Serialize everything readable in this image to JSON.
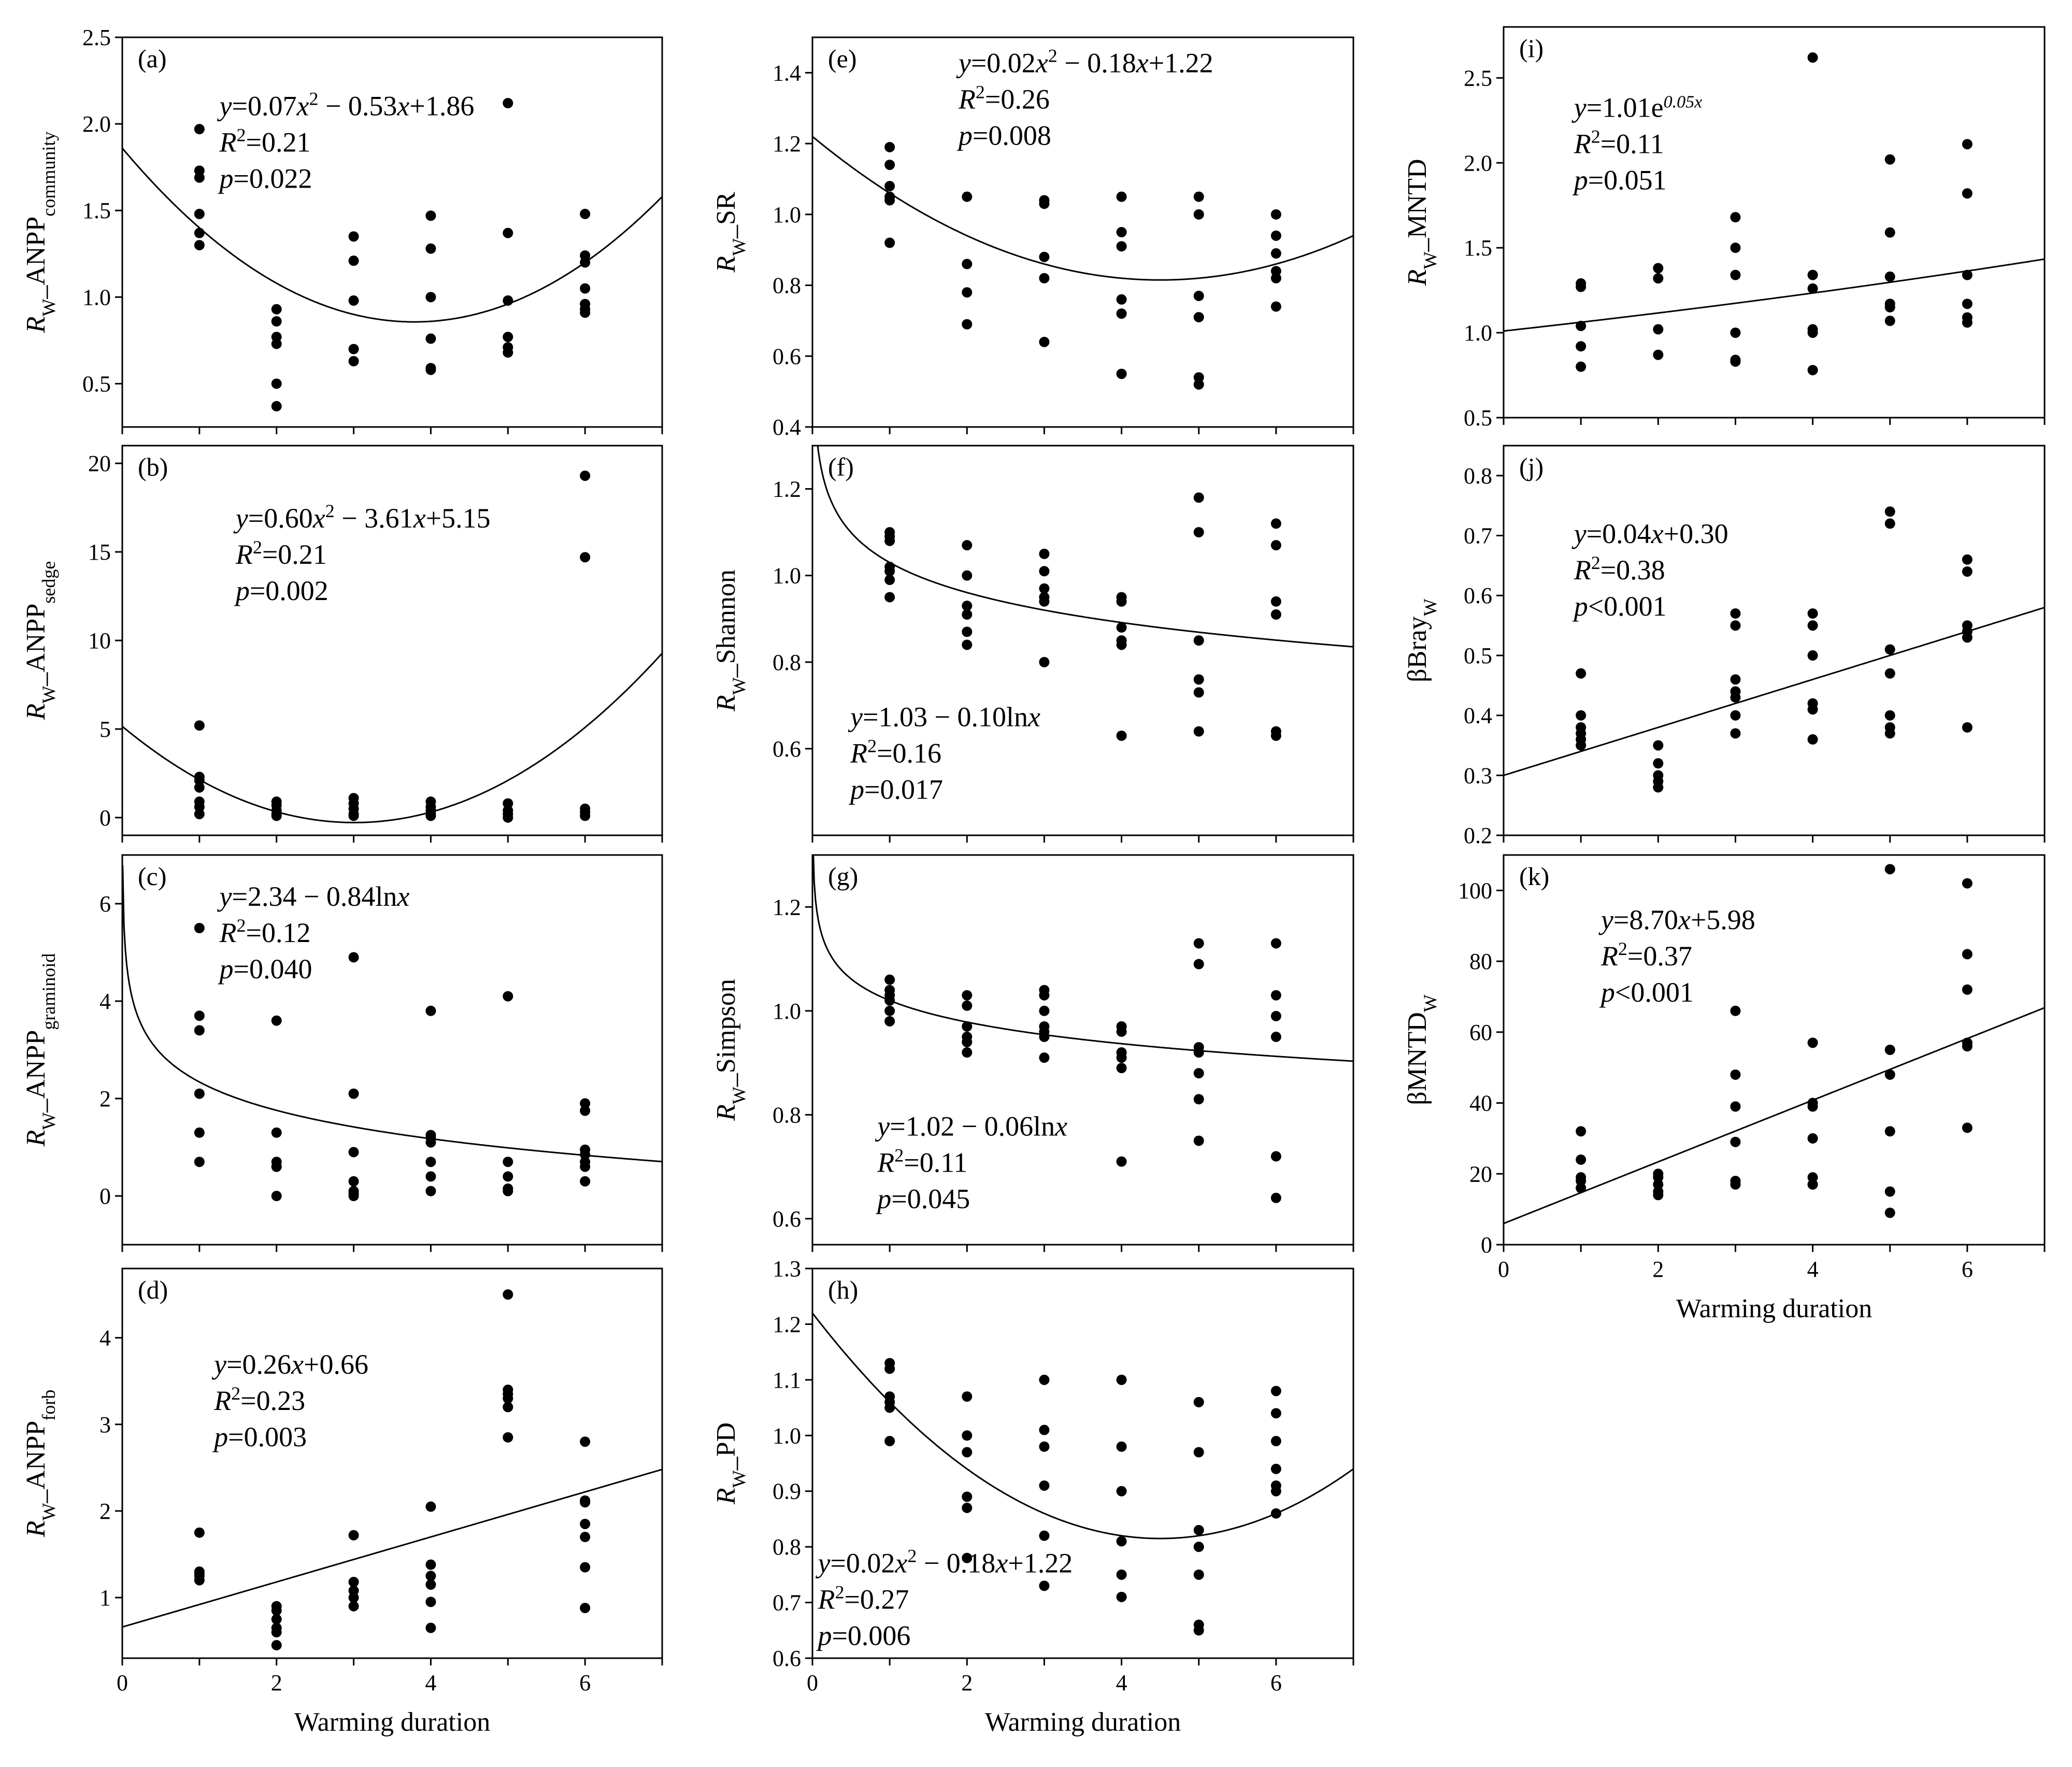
{
  "chart_data": [
    {
      "id": "a",
      "type": "scatter",
      "panel_label": "(a)",
      "ylabel": {
        "main": "R",
        "sub": "W",
        "rest": "_ANPP",
        "sub2": "community"
      },
      "xlabel": "",
      "xlim": [
        0,
        7
      ],
      "ylim": [
        0.25,
        2.5
      ],
      "yticks": [
        "0.5",
        "1.0",
        "1.5",
        "2.0",
        "2.5"
      ],
      "xticks": [],
      "x": [
        1,
        1,
        1,
        1,
        1,
        1,
        2,
        2,
        2,
        2,
        2,
        2,
        3,
        3,
        3,
        3,
        3,
        4,
        4,
        4,
        4,
        4,
        4,
        5,
        5,
        5,
        5,
        5,
        5,
        6,
        6,
        6,
        6,
        6,
        6,
        6
      ],
      "y": [
        1.97,
        1.73,
        1.69,
        1.48,
        1.37,
        1.3,
        0.93,
        0.86,
        0.77,
        0.73,
        0.5,
        0.37,
        1.35,
        1.21,
        0.98,
        0.7,
        0.63,
        1.47,
        1.28,
        1.0,
        0.76,
        0.59,
        0.58,
        2.12,
        1.37,
        0.98,
        0.77,
        0.71,
        0.68,
        1.48,
        1.24,
        1.2,
        1.05,
        0.96,
        0.93,
        0.91
      ],
      "fit": {
        "model": "quadratic",
        "coef": [
          0.07,
          -0.53,
          1.86
        ]
      },
      "annotation": [
        "y=0.07x² − 0.53x+1.86",
        "R²=0.21",
        "p=0.022"
      ]
    },
    {
      "id": "b",
      "type": "scatter",
      "panel_label": "(b)",
      "ylabel": {
        "main": "R",
        "sub": "W",
        "rest": "_ANPP",
        "sub2": "sedge"
      },
      "xlabel": "",
      "xlim": [
        0,
        7
      ],
      "ylim": [
        -1,
        21
      ],
      "yticks": [
        "0",
        "5",
        "10",
        "15",
        "20"
      ],
      "xticks": [],
      "x": [
        1,
        1,
        1,
        1,
        1,
        1,
        1,
        2,
        2,
        2,
        2,
        2,
        3,
        3,
        3,
        3,
        3,
        4,
        4,
        4,
        4,
        4,
        5,
        5,
        5,
        5,
        6,
        6,
        6,
        6,
        6
      ],
      "y": [
        5.2,
        2.3,
        2.1,
        1.7,
        0.9,
        0.6,
        0.2,
        0.9,
        0.7,
        0.4,
        0.2,
        0.1,
        1.1,
        0.8,
        0.5,
        0.2,
        0.1,
        0.9,
        0.6,
        0.4,
        0.2,
        0.1,
        0.8,
        0.4,
        0.2,
        0.0,
        19.3,
        14.7,
        0.5,
        0.3,
        0.1
      ],
      "fit": {
        "model": "quadratic",
        "coef": [
          0.6,
          -3.61,
          5.15
        ]
      },
      "annotation": [
        "y=0.60x² − 3.61x+5.15",
        "R²=0.21",
        "p=0.002"
      ]
    },
    {
      "id": "c",
      "type": "scatter",
      "panel_label": "(c)",
      "ylabel": {
        "main": "R",
        "sub": "W",
        "rest": "_ANPP",
        "sub2": "graminoid"
      },
      "xlabel": "",
      "xlim": [
        0,
        7
      ],
      "ylim": [
        -1,
        7
      ],
      "yticks": [
        "0",
        "2",
        "4",
        "6"
      ],
      "xticks": [],
      "x": [
        1,
        1,
        1,
        1,
        1,
        1,
        2,
        2,
        2,
        2,
        2,
        2,
        3,
        3,
        3,
        3,
        3,
        3,
        3,
        4,
        4,
        4,
        4,
        4,
        4,
        4,
        5,
        5,
        5,
        5,
        5,
        6,
        6,
        6,
        6,
        6,
        6,
        6
      ],
      "y": [
        5.5,
        3.7,
        3.4,
        2.1,
        1.3,
        0.7,
        3.6,
        1.3,
        0.7,
        0.6,
        0.6,
        0.0,
        4.9,
        2.1,
        0.9,
        0.3,
        0.1,
        0.05,
        0.0,
        3.8,
        1.25,
        1.2,
        1.1,
        0.7,
        0.4,
        0.1,
        4.1,
        0.7,
        0.4,
        0.15,
        0.1,
        1.9,
        1.75,
        0.95,
        0.85,
        0.7,
        0.6,
        0.3
      ],
      "fit": {
        "model": "log",
        "coef": [
          2.34,
          -0.84
        ]
      },
      "annotation": [
        "y=2.34 − 0.84lnx",
        "R²=0.12",
        "p=0.040"
      ]
    },
    {
      "id": "d",
      "type": "scatter",
      "panel_label": "(d)",
      "ylabel": {
        "main": "R",
        "sub": "W",
        "rest": "_ANPP",
        "sub2": "forb"
      },
      "xlabel": "Warming duration",
      "xlim": [
        0,
        7
      ],
      "ylim": [
        0.3,
        4.8
      ],
      "yticks": [
        "1",
        "2",
        "3",
        "4"
      ],
      "xticks": [
        "0",
        "2",
        "4",
        "6"
      ],
      "x": [
        1,
        1,
        1,
        1,
        1,
        2,
        2,
        2,
        2,
        2,
        2,
        3,
        3,
        3,
        3,
        3,
        4,
        4,
        4,
        4,
        4,
        4,
        5,
        5,
        5,
        5,
        5,
        5,
        6,
        6,
        6,
        6,
        6,
        6,
        6
      ],
      "y": [
        1.75,
        1.3,
        1.28,
        1.25,
        1.2,
        0.9,
        0.85,
        0.75,
        0.65,
        0.6,
        0.45,
        1.72,
        1.18,
        1.08,
        1.0,
        0.9,
        2.05,
        1.38,
        1.25,
        1.15,
        0.95,
        0.65,
        4.5,
        3.4,
        3.35,
        3.3,
        3.2,
        2.85,
        2.8,
        2.12,
        2.1,
        1.85,
        1.7,
        1.35,
        0.88
      ],
      "fit": {
        "model": "linear",
        "coef": [
          0.66,
          0.26
        ]
      },
      "annotation": [
        "y=0.26x+0.66",
        "R²=0.23",
        "p=0.003"
      ]
    },
    {
      "id": "e",
      "type": "scatter",
      "panel_label": "(e)",
      "ylabel": {
        "main": "R",
        "sub": "W",
        "rest": "_SR",
        "sub2": ""
      },
      "xlabel": "",
      "xlim": [
        0,
        7
      ],
      "ylim": [
        0.4,
        1.5
      ],
      "yticks": [
        "0.4",
        "0.6",
        "0.8",
        "1.0",
        "1.2",
        "1.4"
      ],
      "xticks": [],
      "x": [
        1,
        1,
        1,
        1,
        1,
        1,
        2,
        2,
        2,
        2,
        3,
        3,
        3,
        3,
        3,
        4,
        4,
        4,
        4,
        4,
        4,
        5,
        5,
        5,
        5,
        5,
        5,
        6,
        6,
        6,
        6,
        6,
        6
      ],
      "y": [
        1.19,
        1.14,
        1.08,
        1.05,
        1.04,
        0.92,
        1.05,
        0.86,
        0.78,
        0.69,
        1.04,
        1.03,
        0.88,
        0.82,
        0.64,
        1.05,
        0.95,
        0.91,
        0.76,
        0.72,
        0.55,
        1.05,
        1.0,
        0.77,
        0.71,
        0.54,
        0.52,
        1.0,
        0.94,
        0.89,
        0.84,
        0.82,
        0.74
      ],
      "fit": {
        "model": "quadratic",
        "coef": [
          0.02,
          -0.18,
          1.22
        ]
      },
      "annotation": [
        "y=0.02x² − 0.18x+1.22",
        "R²=0.26",
        "p=0.008"
      ]
    },
    {
      "id": "f",
      "type": "scatter",
      "panel_label": "(f)",
      "ylabel": {
        "main": "R",
        "sub": "W",
        "rest": "_Shannon",
        "sub2": ""
      },
      "xlabel": "",
      "xlim": [
        0,
        7
      ],
      "ylim": [
        0.4,
        1.3
      ],
      "yticks": [
        "0.6",
        "0.8",
        "1.0",
        "1.2"
      ],
      "xticks": [],
      "x": [
        1,
        1,
        1,
        1,
        1,
        1,
        1,
        2,
        2,
        2,
        2,
        2,
        2,
        3,
        3,
        3,
        3,
        3,
        3,
        4,
        4,
        4,
        4,
        4,
        4,
        5,
        5,
        5,
        5,
        5,
        5,
        6,
        6,
        6,
        6,
        6,
        6
      ],
      "y": [
        1.1,
        1.09,
        1.08,
        1.02,
        1.01,
        0.99,
        0.95,
        1.07,
        1.0,
        0.93,
        0.91,
        0.87,
        0.84,
        1.05,
        1.01,
        0.97,
        0.95,
        0.94,
        0.8,
        0.95,
        0.94,
        0.88,
        0.85,
        0.84,
        0.63,
        1.18,
        1.1,
        0.85,
        0.76,
        0.73,
        0.64,
        1.12,
        1.07,
        0.94,
        0.91,
        0.64,
        0.63
      ],
      "fit": {
        "model": "log",
        "coef": [
          1.03,
          -0.1
        ]
      },
      "annotation": [
        "y=1.03 − 0.10lnx",
        "R²=0.16",
        "p=0.017"
      ]
    },
    {
      "id": "g",
      "type": "scatter",
      "panel_label": "(g)",
      "ylabel": {
        "main": "R",
        "sub": "W",
        "rest": "_Simpson",
        "sub2": ""
      },
      "xlabel": "",
      "xlim": [
        0,
        7
      ],
      "ylim": [
        0.55,
        1.3
      ],
      "yticks": [
        "0.6",
        "0.8",
        "1.0",
        "1.2"
      ],
      "xticks": [],
      "x": [
        1,
        1,
        1,
        1,
        1,
        1,
        2,
        2,
        2,
        2,
        2,
        2,
        3,
        3,
        3,
        3,
        3,
        3,
        3,
        4,
        4,
        4,
        4,
        4,
        4,
        5,
        5,
        5,
        5,
        5,
        5,
        5,
        6,
        6,
        6,
        6,
        6,
        6
      ],
      "y": [
        1.06,
        1.04,
        1.03,
        1.02,
        1.0,
        0.98,
        1.03,
        1.01,
        0.97,
        0.95,
        0.94,
        0.92,
        1.04,
        1.03,
        1.0,
        0.97,
        0.96,
        0.95,
        0.91,
        0.97,
        0.96,
        0.92,
        0.91,
        0.89,
        0.71,
        1.13,
        1.09,
        0.93,
        0.92,
        0.88,
        0.83,
        0.75,
        1.13,
        1.03,
        0.99,
        0.95,
        0.72,
        0.64
      ],
      "fit": {
        "model": "log",
        "coef": [
          1.02,
          -0.06
        ]
      },
      "annotation": [
        "y=1.02 − 0.06lnx",
        "R²=0.11",
        "p=0.045"
      ]
    },
    {
      "id": "h",
      "type": "scatter",
      "panel_label": "(h)",
      "ylabel": {
        "main": "R",
        "sub": "W",
        "rest": "_PD",
        "sub2": ""
      },
      "xlabel": "Warming duration",
      "xlim": [
        0,
        7
      ],
      "ylim": [
        0.6,
        1.3
      ],
      "yticks": [
        "0.6",
        "0.7",
        "0.8",
        "0.9",
        "1.0",
        "1.1",
        "1.2",
        "1.3"
      ],
      "xticks": [
        "0",
        "2",
        "4",
        "6"
      ],
      "x": [
        1,
        1,
        1,
        1,
        1,
        1,
        2,
        2,
        2,
        2,
        2,
        2,
        3,
        3,
        3,
        3,
        3,
        3,
        4,
        4,
        4,
        4,
        4,
        4,
        5,
        5,
        5,
        5,
        5,
        5,
        5,
        6,
        6,
        6,
        6,
        6,
        6,
        6
      ],
      "y": [
        1.13,
        1.12,
        1.07,
        1.06,
        1.05,
        0.99,
        1.07,
        1.0,
        0.97,
        0.89,
        0.87,
        0.78,
        1.1,
        1.01,
        0.98,
        0.91,
        0.82,
        0.73,
        1.1,
        0.98,
        0.9,
        0.81,
        0.75,
        0.71,
        1.06,
        0.97,
        0.83,
        0.8,
        0.75,
        0.66,
        0.65,
        1.08,
        1.04,
        0.99,
        0.94,
        0.91,
        0.9,
        0.86
      ],
      "fit": {
        "model": "quadratic",
        "coef": [
          0.02,
          -0.18,
          1.22
        ]
      },
      "annotation": [
        "y=0.02x² − 0.18x+1.22",
        "R²=0.27",
        "p=0.006"
      ]
    },
    {
      "id": "i",
      "type": "scatter",
      "panel_label": "(i)",
      "ylabel": {
        "main": "R",
        "sub": "W",
        "rest": "_MNTD",
        "sub2": ""
      },
      "xlabel": "",
      "xlim": [
        0,
        7
      ],
      "ylim": [
        0.5,
        2.8
      ],
      "yticks": [
        "0.5",
        "1.0",
        "1.5",
        "2.0",
        "2.5"
      ],
      "xticks": [],
      "x": [
        1,
        1,
        1,
        1,
        1,
        2,
        2,
        2,
        2,
        3,
        3,
        3,
        3,
        3,
        3,
        4,
        4,
        4,
        4,
        4,
        4,
        5,
        5,
        5,
        5,
        5,
        5,
        6,
        6,
        6,
        6,
        6,
        6
      ],
      "y": [
        1.29,
        1.27,
        1.04,
        0.92,
        0.8,
        1.38,
        1.32,
        1.02,
        0.87,
        1.68,
        1.5,
        1.34,
        1.0,
        0.84,
        0.83,
        2.62,
        1.34,
        1.26,
        1.02,
        1.0,
        0.78,
        2.02,
        1.59,
        1.33,
        1.17,
        1.15,
        1.07,
        2.11,
        1.82,
        1.34,
        1.17,
        1.09,
        1.06
      ],
      "fit": {
        "model": "exp",
        "coef": [
          1.01,
          0.05
        ]
      },
      "annotation": [
        "y=1.01e0.05x",
        "R²=0.11",
        "p=0.051"
      ]
    },
    {
      "id": "j",
      "type": "scatter",
      "panel_label": "(j)",
      "ylabel": {
        "main": "βBray",
        "sub": "W",
        "rest": "",
        "sub2": ""
      },
      "xlabel": "",
      "xlim": [
        0,
        7
      ],
      "ylim": [
        0.2,
        0.85
      ],
      "yticks": [
        "0.2",
        "0.3",
        "0.4",
        "0.5",
        "0.6",
        "0.7",
        "0.8"
      ],
      "xticks": [],
      "x": [
        1,
        1,
        1,
        1,
        1,
        1,
        2,
        2,
        2,
        2,
        2,
        3,
        3,
        3,
        3,
        3,
        3,
        3,
        4,
        4,
        4,
        4,
        4,
        4,
        5,
        5,
        5,
        5,
        5,
        5,
        5,
        6,
        6,
        6,
        6,
        6,
        6
      ],
      "y": [
        0.47,
        0.4,
        0.38,
        0.37,
        0.36,
        0.35,
        0.35,
        0.32,
        0.3,
        0.29,
        0.28,
        0.57,
        0.55,
        0.46,
        0.44,
        0.43,
        0.4,
        0.37,
        0.57,
        0.55,
        0.5,
        0.42,
        0.41,
        0.36,
        0.74,
        0.72,
        0.51,
        0.47,
        0.4,
        0.38,
        0.37,
        0.66,
        0.64,
        0.55,
        0.54,
        0.53,
        0.38
      ],
      "fit": {
        "model": "linear",
        "coef": [
          0.3,
          0.04
        ]
      },
      "annotation": [
        "y=0.04x+0.30",
        "R²=0.38",
        "p<0.001"
      ]
    },
    {
      "id": "k",
      "type": "scatter",
      "panel_label": "(k)",
      "ylabel": {
        "main": "βMNTD",
        "sub": "W",
        "rest": "",
        "sub2": ""
      },
      "xlabel": "Warming duration",
      "xlim": [
        0,
        7
      ],
      "ylim": [
        0,
        110
      ],
      "yticks": [
        "0",
        "20",
        "40",
        "60",
        "80",
        "100"
      ],
      "xticks": [
        "0",
        "2",
        "4",
        "6"
      ],
      "x": [
        1,
        1,
        1,
        1,
        1,
        2,
        2,
        2,
        2,
        2,
        3,
        3,
        3,
        3,
        3,
        3,
        4,
        4,
        4,
        4,
        4,
        4,
        4,
        5,
        5,
        5,
        5,
        5,
        5,
        6,
        6,
        6,
        6,
        6,
        6
      ],
      "y": [
        32,
        24,
        19,
        18,
        16,
        20,
        19,
        17,
        15,
        14,
        66,
        48,
        39,
        29,
        18,
        17,
        57,
        40,
        39,
        30,
        19,
        17,
        17,
        106,
        55,
        48,
        32,
        15,
        9,
        102,
        82,
        72,
        57,
        56,
        33
      ],
      "fit": {
        "model": "linear",
        "coef": [
          5.98,
          8.7
        ]
      },
      "annotation": [
        "y=8.70x+5.98",
        "R²=0.37",
        "p<0.001"
      ]
    }
  ]
}
